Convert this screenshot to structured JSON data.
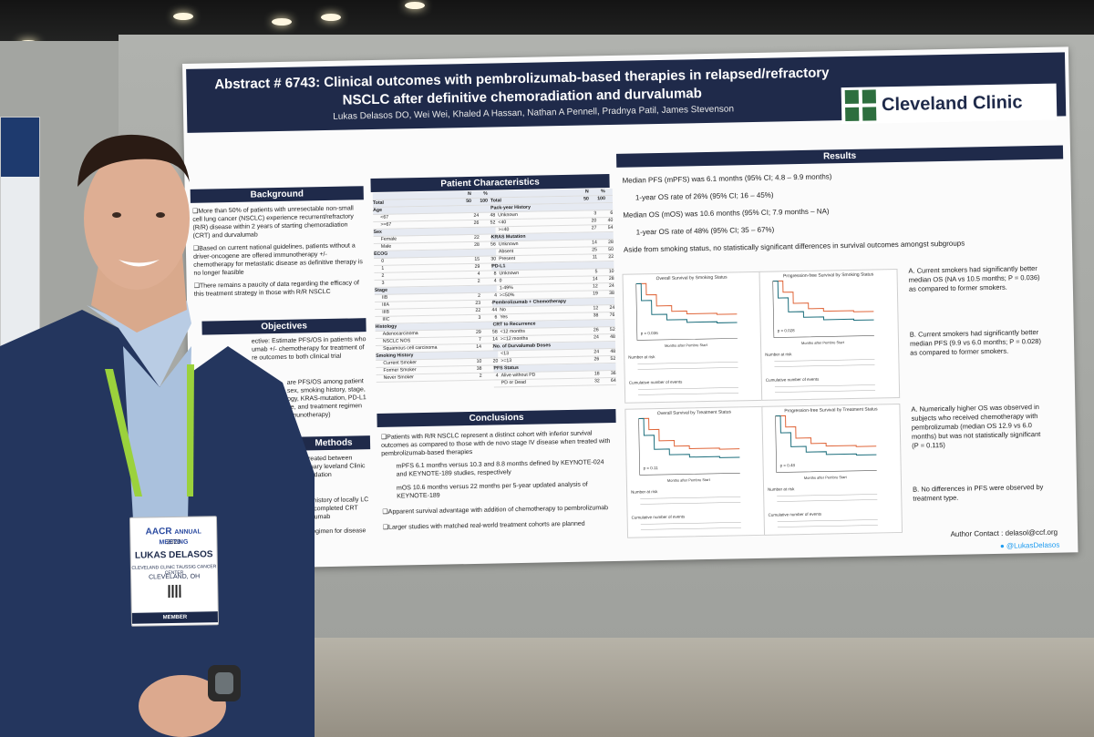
{
  "poster": {
    "title": "Abstract # 6743: Clinical outcomes with pembrolizumab-based therapies in relapsed/refractory NSCLC after definitive chemoradiation and durvalumab",
    "authors": "Lukas Delasos DO, Wei Wei, Khaled A Hassan, Nathan A Pennell, Pradnya Patil, James Stevenson",
    "logo_text": "Cleveland Clinic",
    "sections": {
      "background": "Background",
      "objectives": "Objectives",
      "methods": "Methods",
      "patient_characteristics": "Patient Characteristics",
      "conclusions": "Conclusions",
      "results": "Results"
    },
    "background_bullets": [
      "More than 50% of patients with unresectable non-small cell lung cancer (NSCLC) experience recurrent/refractory (R/R) disease within 2 years of starting chemoradiation (CRT) and durvalumab",
      "Based on current national guidelines, patients without a driver-oncogene are offered immunotherapy +/- chemotherapy for metastatic disease as definitive therapy is no longer feasible",
      "There remains a paucity of data regarding the efficacy of this treatment strategy in those with R/R NSCLC"
    ],
    "objectives_text": "ective: Estimate PFS/OS in patients who umab +/- chemotherapy for treatment of re outcomes to both clinical trial",
    "objectives_text2": "are PFS/OS among patient sex, smoking history, stage, ogy, KRAS-mutation, PD-L1 ce, and treatment regimen nmunotherapy)",
    "methods_text": "rs treated between January leveland Clinic Foundation",
    "methods_text2": "with history of locally LC who completed CRT urvalumab",
    "methods_text3": "regimen for disease",
    "table_left": [
      [
        "",
        "N",
        "%"
      ],
      [
        "Total",
        "50",
        "100"
      ],
      [
        "Age",
        "",
        ""
      ],
      [
        "<67",
        "24",
        "48"
      ],
      [
        ">=67",
        "26",
        "52"
      ],
      [
        "Sex",
        "",
        ""
      ],
      [
        "Female",
        "22",
        "44"
      ],
      [
        "Male",
        "28",
        "56"
      ],
      [
        "ECOG",
        "",
        ""
      ],
      [
        "0",
        "15",
        "30"
      ],
      [
        "1",
        "29",
        "58"
      ],
      [
        "2",
        "4",
        "8"
      ],
      [
        "3",
        "2",
        "4"
      ],
      [
        "Stage",
        "",
        ""
      ],
      [
        "IIB",
        "2",
        "4"
      ],
      [
        "IIIA",
        "23",
        "46"
      ],
      [
        "IIIB",
        "22",
        "44"
      ],
      [
        "IIIC",
        "3",
        "6"
      ],
      [
        "Histology",
        "",
        ""
      ],
      [
        "Adenocarcinoma",
        "29",
        "58"
      ],
      [
        "NSCLC NOS",
        "7",
        "14"
      ],
      [
        "Squamous cell carcinoma",
        "14",
        "28"
      ],
      [
        "Smoking History",
        "",
        ""
      ],
      [
        "Current Smoker",
        "10",
        "20"
      ],
      [
        "Former Smoker",
        "38",
        "76"
      ],
      [
        "Never Smoker",
        "2",
        "4"
      ]
    ],
    "table_right": [
      [
        "",
        "N",
        "%"
      ],
      [
        "Total",
        "50",
        "100"
      ],
      [
        "Pack-year History",
        "",
        ""
      ],
      [
        "Unknown",
        "3",
        "6"
      ],
      [
        "<40",
        "20",
        "40"
      ],
      [
        ">=40",
        "27",
        "54"
      ],
      [
        "KRAS Mutation",
        "",
        ""
      ],
      [
        "Unknown",
        "14",
        "28"
      ],
      [
        "Absent",
        "25",
        "50"
      ],
      [
        "Present",
        "11",
        "22"
      ],
      [
        "PD-L1",
        "",
        ""
      ],
      [
        "Unknown",
        "5",
        "10"
      ],
      [
        "0",
        "14",
        "28"
      ],
      [
        "1-49%",
        "12",
        "24"
      ],
      [
        ">=50%",
        "19",
        "38"
      ],
      [
        "Pembrolizumab + Chemotherapy",
        "",
        ""
      ],
      [
        "No",
        "12",
        "24"
      ],
      [
        "Yes",
        "38",
        "76"
      ],
      [
        "CRT to Recurrence",
        "",
        ""
      ],
      [
        "<12 months",
        "26",
        "52"
      ],
      [
        ">=12 months",
        "24",
        "48"
      ],
      [
        "No. of Durvalumab Doses",
        "",
        ""
      ],
      [
        "<13",
        "24",
        "48"
      ],
      [
        ">=13",
        "26",
        "52"
      ],
      [
        "PFS Status",
        "",
        ""
      ],
      [
        "Alive without PD",
        "18",
        "36"
      ],
      [
        "PD or Dead",
        "32",
        "64"
      ]
    ],
    "conclusions": [
      "Patients with R/R NSCLC represent a distinct cohort with inferior survival outcomes as compared to those with de novo stage IV disease when treated with pembrolizumab-based therapies",
      "mPFS 6.1 months versus 10.3 and 8.8 months defined by KEYNOTE-024 and KEYNOTE-189 studies, respectively",
      "mOS 10.6 months versus 22 months per 5-year updated analysis of KEYNOTE-189",
      "Apparent survival advantage with addition of chemotherapy to pembrolizumab",
      "Larger studies with matched real-world treatment cohorts are planned"
    ],
    "results_lines": [
      "Median PFS (mPFS) was 6.1 months (95% CI; 4.8 – 9.9 months)",
      "1-year OS rate of 26% (95% CI; 16 – 45%)",
      "Median OS (mOS) was 10.6 months (95% CI; 7.9 months – NA)",
      "1-year OS rate of 48% (95% CI; 35 – 67%)",
      "Aside from smoking status, no statistically significant differences in survival outcomes amongst subgroups"
    ],
    "plots": [
      {
        "title": "Overall Survival by Smoking Status",
        "label": "A",
        "p": "p = 0.036"
      },
      {
        "title": "Progression-free Survival by Smoking Status",
        "label": "B",
        "p": "p = 0.028"
      },
      {
        "title": "Overall Survival by Treatment Status",
        "label": "A",
        "p": "p = 0.11"
      },
      {
        "title": "Progression-free Survival by Treatment Status",
        "label": "B",
        "p": "p = 0.48"
      }
    ],
    "plot_axis": "Months after Pembro Start",
    "plot_risk": "Number at risk",
    "plot_events": "Cumulative number of events",
    "notes": [
      "A.  Current smokers had significantly better median OS (NA vs 10.5 months; P = 0.036) as compared to former smokers.",
      "B.  Current smokers had significantly better median PFS (9.9 vs 6.0 months; P = 0.028) as compared to former smokers.",
      "A.  Numerically higher OS was observed in subjects who received chemotherapy with pembrolizumab (median OS 12.9 vs 6.0 months) but was not statistically significant (P = 0.115)",
      "B.  No differences in PFS were observed by treatment type."
    ],
    "contact": "Author Contact : delasol@ccf.org",
    "twitter": "@LukasDelasos"
  },
  "badge": {
    "org": "AACR",
    "meeting": "ANNUAL MEETING",
    "year": "2023",
    "name": "LUKAS DELASOS",
    "affiliation": "CLEVELAND CLINIC TAUSSIG CANCER CENTER",
    "city": "CLEVELAND, OH",
    "type": "MEMBER"
  },
  "colors": {
    "navy": "#1f2a4a",
    "green": "#2d6e3e",
    "suit": "#24365e",
    "lanyard": "#9bd23c"
  }
}
